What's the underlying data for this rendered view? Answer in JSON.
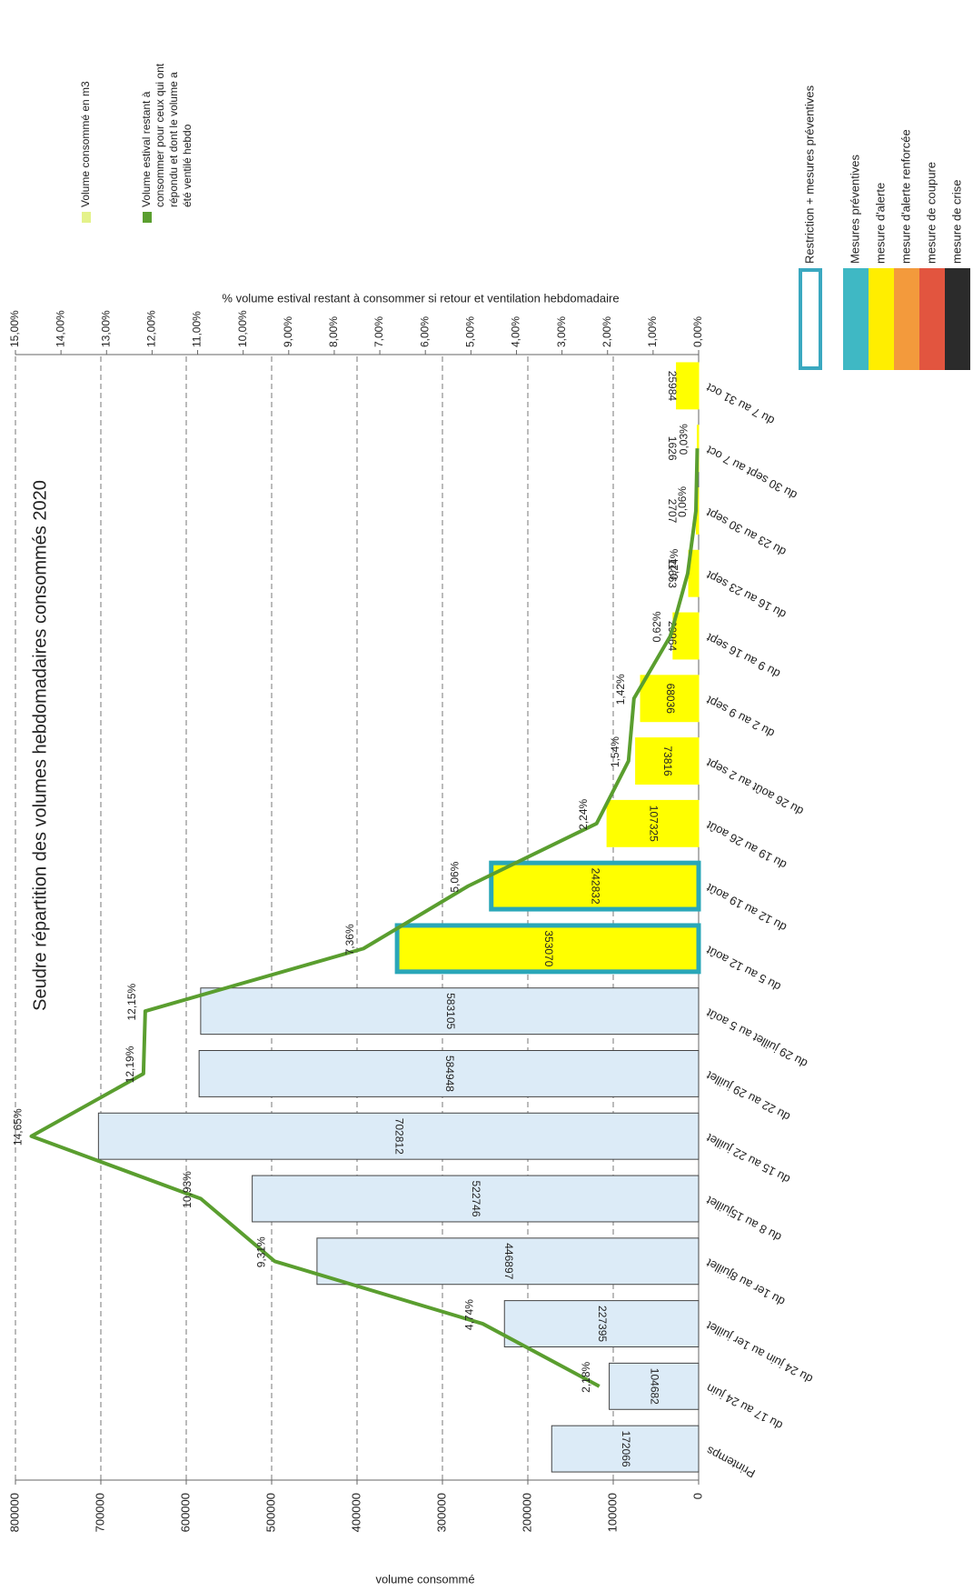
{
  "chart_data": {
    "type": "bar-line",
    "title": "Seudre répartition des volumes hebdomadaires consommés 2020",
    "y_label": "volume consommé",
    "y2_label": "% volume estival restant  à consommer  si retour et ventilation hebdomadaire",
    "categories": [
      "Printemps",
      "du 17 au 24 juin",
      "du 24 juin au 1er juillet",
      "du 1er au 8juillet",
      "du 8 au 15juillet",
      "du 15 au 22 juillet",
      "du 22 au 29 juillet",
      "du 29 juillet au 5 août",
      "du 5 au 12 août",
      "du 12 au 19 août",
      "du 19 au 26 août",
      "du 26 août au 2 sept",
      "du 2 au 9 sept",
      "du 9 au 16 sept",
      "du 16 au 23 sept",
      "du 23 au 30 sept",
      "du 30 sept au 7 oct",
      "du 7 au 31 oct"
    ],
    "series": [
      {
        "name": "Volume consommé en m3",
        "type": "bar",
        "color": "#e4f28a",
        "values": [
          172066,
          104682,
          227395,
          446897,
          522746,
          702812,
          584948,
          583105,
          353070,
          242832,
          107325,
          73816,
          68036,
          29964,
          11663,
          2707,
          1626,
          25984
        ],
        "bar_colors": [
          "#dcebf7",
          "#dcebf7",
          "#dcebf7",
          "#dcebf7",
          "#dcebf7",
          "#dcebf7",
          "#dcebf7",
          "#dcebf7",
          "#ffff00",
          "#ffff00",
          "#ffff00",
          "#ffff00",
          "#ffff00",
          "#ffff00",
          "#ffff00",
          "#ffff00",
          "#ffff00",
          "#ffff00"
        ],
        "bar_borders": [
          "#444444",
          "#444444",
          "#444444",
          "#444444",
          "#444444",
          "#444444",
          "#444444",
          "#444444",
          "#2aa7b8",
          "#2aa7b8",
          "#ffff00",
          "#ffff00",
          "#ffff00",
          "#ffff00",
          "#ffff00",
          "#ffff00",
          "#ffff00",
          "#ffff00"
        ]
      },
      {
        "name": "Volume estival restant à consommer pour ceux qui ont répondu et dont le volume a été ventilé hebdo",
        "type": "line",
        "axis": "y2",
        "color": "#5a9e2f",
        "values": [
          null,
          2.18,
          4.74,
          9.31,
          10.93,
          14.65,
          12.19,
          12.15,
          7.36,
          5.06,
          2.24,
          1.54,
          1.42,
          0.62,
          0.24,
          0.06,
          0.03,
          null
        ],
        "value_labels": [
          null,
          "2,18%",
          "4,74%",
          "9,31%",
          "10,93%",
          "14,65%",
          "12,19%",
          "12,15%",
          "7,36%",
          "5,06%",
          "2,24%",
          "1,54%",
          "1,42%",
          "0,62%",
          "0,24%",
          "0,06%",
          "0,03%",
          null
        ]
      }
    ],
    "ylim": [
      0,
      800000
    ],
    "yticks": [
      0,
      100000,
      200000,
      300000,
      400000,
      500000,
      600000,
      700000,
      800000
    ],
    "y2lim": [
      0,
      15
    ],
    "y2ticks": [
      {
        "value": 0,
        "label": "0,00%"
      },
      {
        "value": 1,
        "label": "1,00%"
      },
      {
        "value": 2,
        "label": "2,00%"
      },
      {
        "value": 3,
        "label": "3,00%"
      },
      {
        "value": 4,
        "label": "4,00%"
      },
      {
        "value": 5,
        "label": "5,00%"
      },
      {
        "value": 6,
        "label": "6,00%"
      },
      {
        "value": 7,
        "label": "7,00%"
      },
      {
        "value": 8,
        "label": "8,00%"
      },
      {
        "value": 9,
        "label": "9,00%"
      },
      {
        "value": 10,
        "label": "10,00%"
      },
      {
        "value": 11,
        "label": "11,00%"
      },
      {
        "value": 12,
        "label": "12,00%"
      },
      {
        "value": 13,
        "label": "13,00%"
      },
      {
        "value": 14,
        "label": "14,00%"
      },
      {
        "value": 15,
        "label": "15,00%"
      }
    ],
    "grid": true,
    "measure_legend": [
      {
        "label": "Restriction + mesures préventives",
        "color": "#3aa8c0",
        "outline": true
      },
      {
        "label": "Mesures préventives",
        "color": "#3fb8c4",
        "outline": false
      },
      {
        "label": "mesure d'alerte",
        "color": "#ffee00",
        "outline": false
      },
      {
        "label": "mesure d'alerte renforcée",
        "color": "#f39a3c",
        "outline": false
      },
      {
        "label": "mesure de coupure",
        "color": "#e2553f",
        "outline": false
      },
      {
        "label": "mesure de crise",
        "color": "#2b2b2b",
        "outline": false
      }
    ]
  }
}
